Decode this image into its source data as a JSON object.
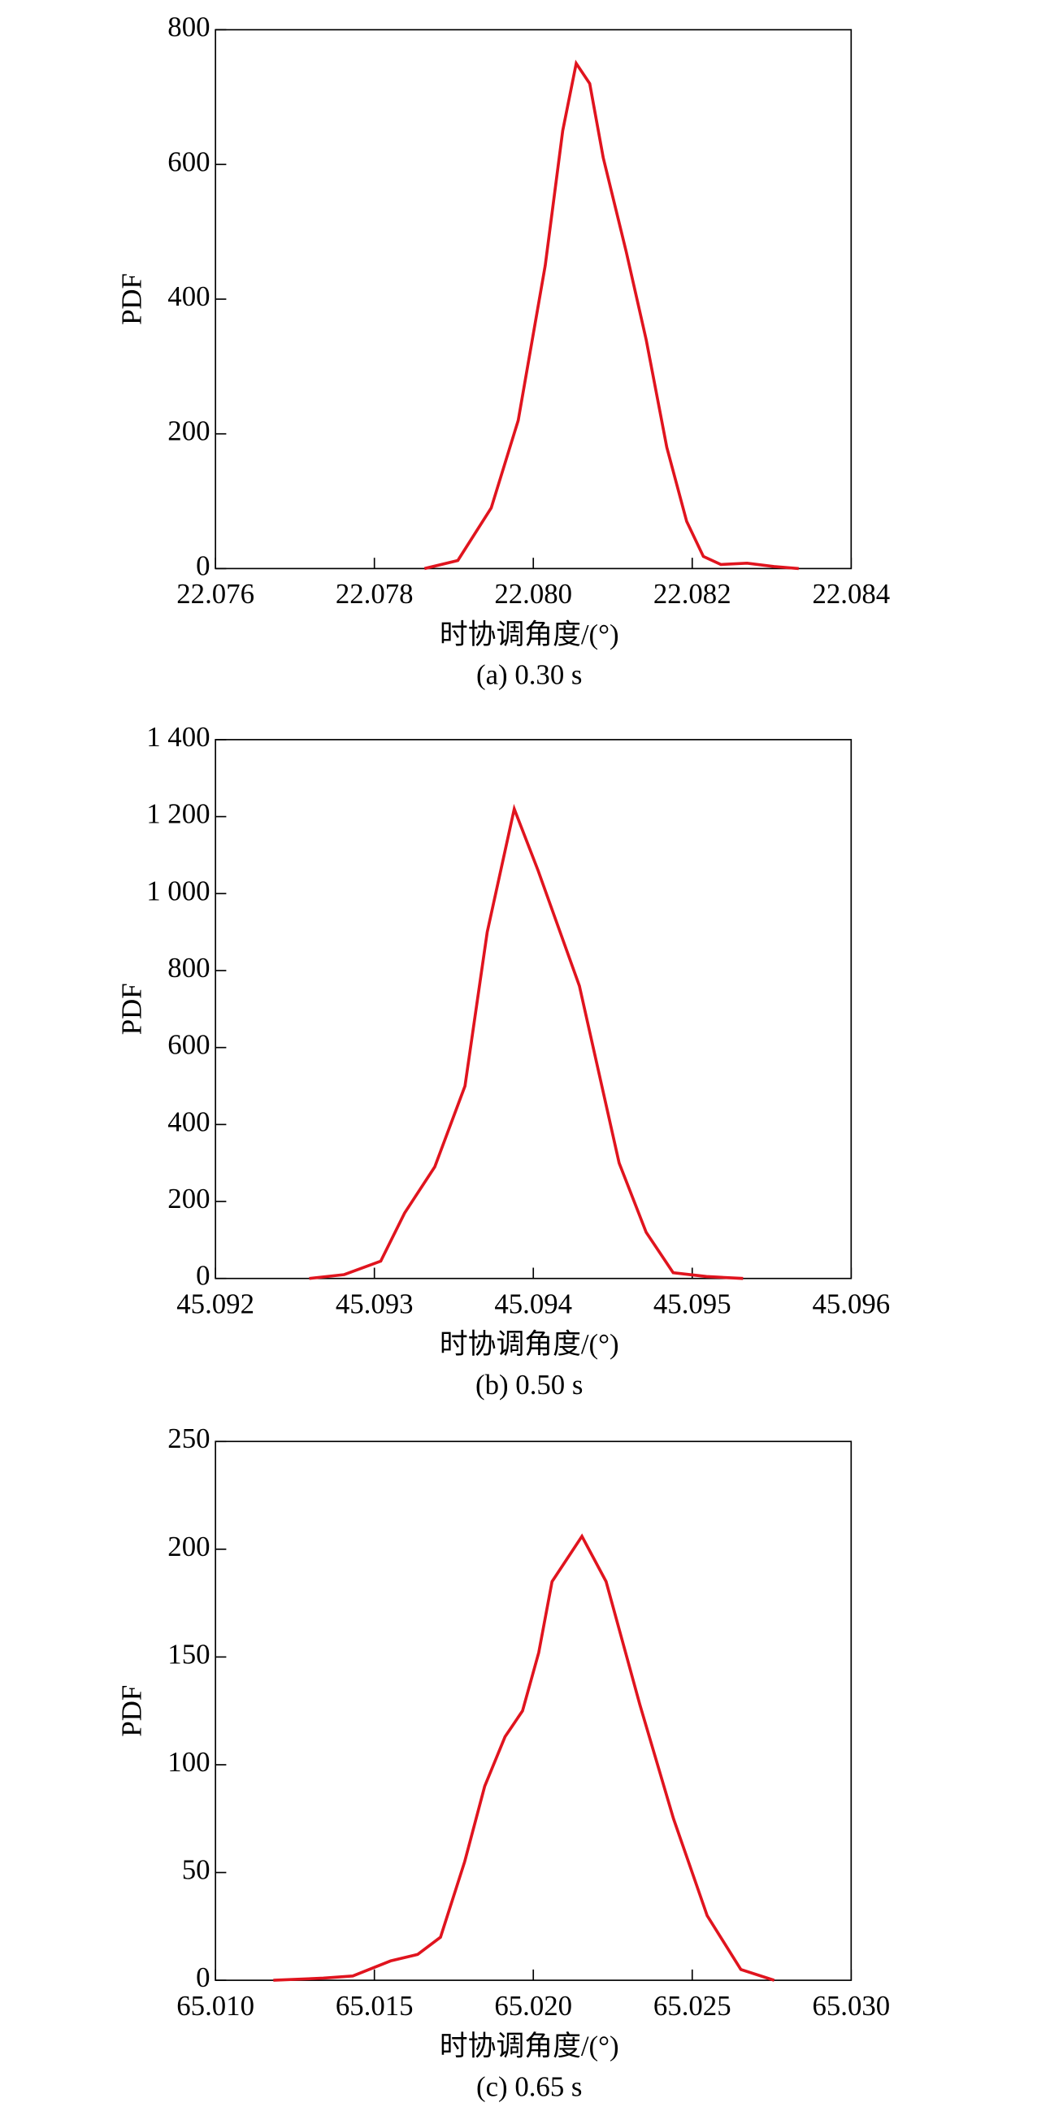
{
  "chart_data": [
    {
      "type": "line",
      "caption": "(a) 0.30 s",
      "xlabel": "时协调角度/(°)",
      "ylabel": "PDF",
      "xlim": [
        22.076,
        22.084
      ],
      "xticks": [
        22.076,
        22.078,
        {
          "value": 22.08,
          "label": "22.080"
        },
        22.082,
        22.084
      ],
      "ylim": [
        0,
        800
      ],
      "yticks": [
        0,
        200,
        400,
        600,
        800
      ],
      "series": [
        {
          "color": "#e0141e",
          "x": [
            22.07863,
            22.07905,
            22.07947,
            22.07981,
            22.08015,
            22.08037,
            22.08054,
            22.08071,
            22.08088,
            22.08117,
            22.08142,
            22.08168,
            22.08193,
            22.08214,
            22.08236,
            22.08269,
            22.08303,
            22.08334
          ],
          "values": [
            0,
            12,
            90,
            220,
            450,
            650,
            750,
            720,
            610,
            470,
            340,
            180,
            70,
            18,
            6,
            8,
            3,
            0
          ]
        }
      ]
    },
    {
      "type": "line",
      "caption": "(b) 0.50 s",
      "xlabel": "时协调角度/(°)",
      "ylabel": "PDF",
      "xlim": [
        45.092,
        45.096
      ],
      "xticks": [
        45.092,
        45.093,
        45.094,
        45.095,
        45.096
      ],
      "ylim": [
        0,
        1400
      ],
      "yticks": [
        0,
        200,
        400,
        600,
        800,
        {
          "value": 1000,
          "label": "1 000"
        },
        {
          "value": 1200,
          "label": "1 200"
        },
        {
          "value": 1400,
          "label": "1 400"
        }
      ],
      "series": [
        {
          "color": "#e0141e",
          "x": [
            45.09259,
            45.09281,
            45.09304,
            45.09319,
            45.09338,
            45.09357,
            45.09371,
            45.09388,
            45.09403,
            45.09429,
            45.09454,
            45.09471,
            45.09488,
            45.09509,
            45.09532
          ],
          "values": [
            0,
            10,
            45,
            170,
            290,
            500,
            900,
            1220,
            1060,
            760,
            300,
            120,
            15,
            5,
            0
          ]
        }
      ]
    },
    {
      "type": "line",
      "caption": "(c) 0.65 s",
      "xlabel": "时协调角度/(°)",
      "ylabel": "PDF",
      "xlim": [
        65.01,
        65.03
      ],
      "xticks": [
        {
          "value": 65.01,
          "label": "65.010"
        },
        65.015,
        {
          "value": 65.02,
          "label": "65.020"
        },
        65.025,
        {
          "value": 65.03,
          "label": "65.030"
        }
      ],
      "ylim": [
        0,
        250
      ],
      "yticks": [
        0,
        50,
        100,
        150,
        200,
        250
      ],
      "series": [
        {
          "color": "#e0141e",
          "x": [
            65.01182,
            65.01339,
            65.01432,
            65.01551,
            65.01636,
            65.01708,
            65.01784,
            65.01847,
            65.01911,
            65.01966,
            65.02017,
            65.02059,
            65.02153,
            65.02229,
            65.02335,
            65.02441,
            65.02547,
            65.02653,
            65.02758
          ],
          "values": [
            0,
            1,
            2,
            9,
            12,
            20,
            55,
            90,
            113,
            125,
            152,
            185,
            206,
            185,
            128,
            75,
            30,
            5,
            0
          ]
        }
      ]
    }
  ]
}
